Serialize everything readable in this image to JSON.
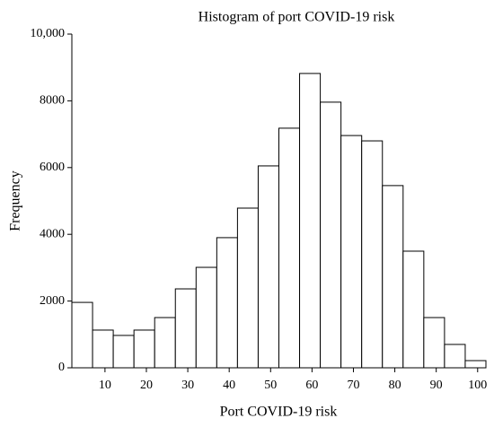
{
  "chart_data": {
    "type": "histogram",
    "title": "Histogram of port COVID-19 risk",
    "x_label": "Port COVID-19 risk",
    "y_label": "Frequency",
    "bins": [
      2,
      7,
      12,
      17,
      22,
      27,
      32,
      37,
      42,
      47,
      52,
      57,
      62,
      67,
      72,
      77,
      82,
      87,
      92,
      97,
      102
    ],
    "values": [
      1960,
      1130,
      970,
      1130,
      1505,
      2365,
      3010,
      3900,
      4785,
      6050,
      7180,
      8820,
      7960,
      6960,
      6800,
      5460,
      3495,
      1505,
      700,
      215
    ],
    "color": "#ffffff",
    "edgecolor": "#000000",
    "xlim": [
      2,
      102
    ],
    "xticks": [
      10,
      20,
      30,
      40,
      50,
      60,
      70,
      80,
      90,
      100
    ],
    "ylim": [
      0,
      10000
    ],
    "yticks": [
      0,
      2000,
      4000,
      6000,
      8000,
      {
        "value": 10000,
        "label": "10,000"
      }
    ]
  }
}
